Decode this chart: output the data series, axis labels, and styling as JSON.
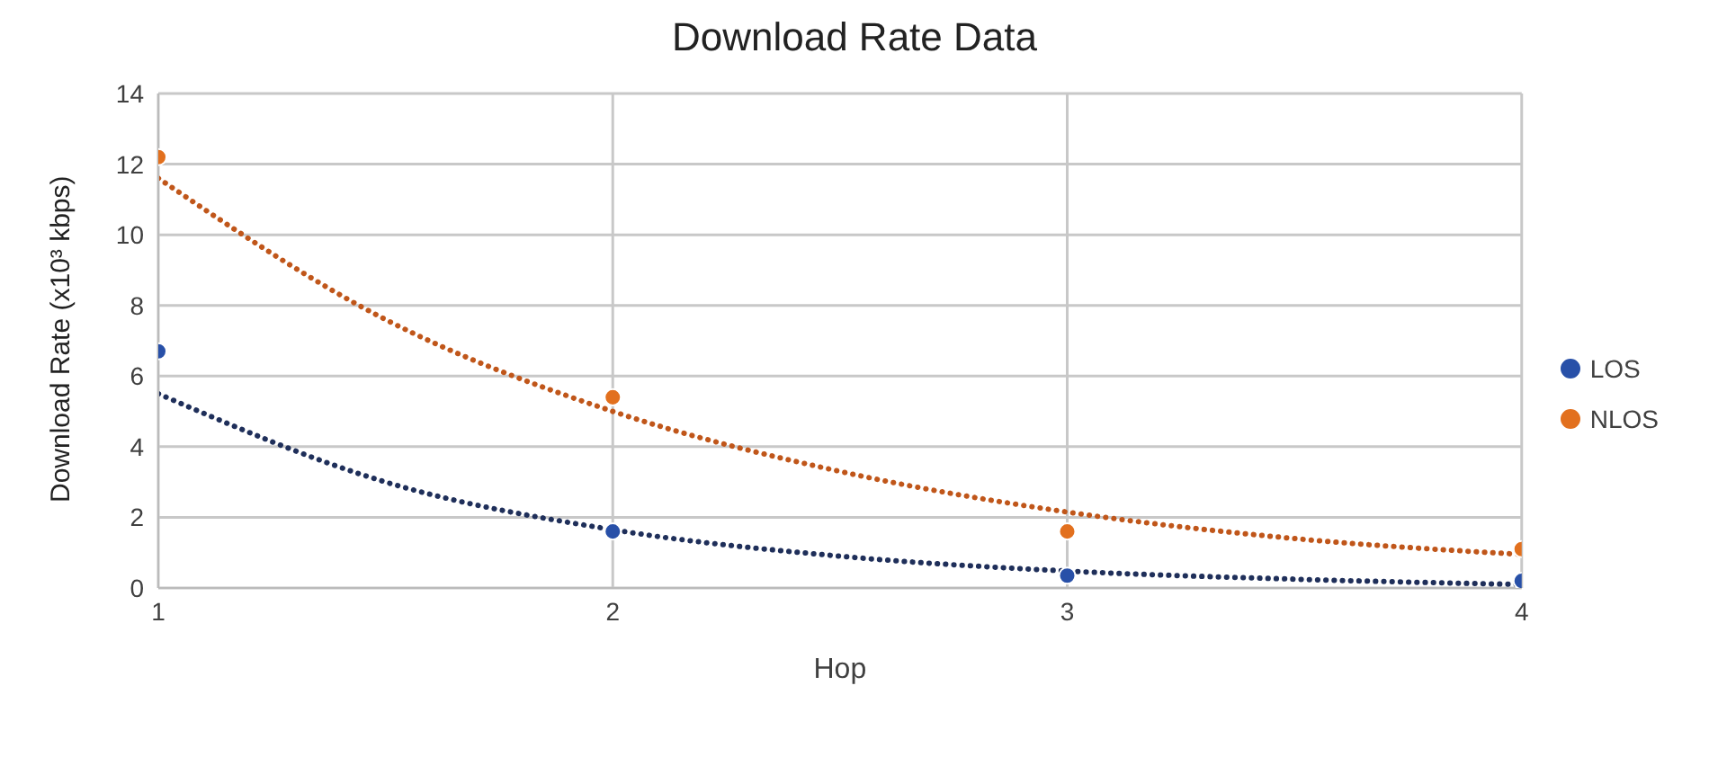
{
  "chart_data": {
    "type": "scatter",
    "title": "Download Rate Data",
    "xlabel": "Hop",
    "ylabel": "Download Rate (x10³ kbps)",
    "x": [
      1,
      2,
      3,
      4
    ],
    "series": [
      {
        "name": "LOS",
        "color": "#2850a8",
        "values": [
          6.7,
          1.6,
          0.35,
          0.2
        ]
      },
      {
        "name": "NLOS",
        "color": "#e2701e",
        "values": [
          12.2,
          5.4,
          1.6,
          1.1
        ]
      },
      {
        "type": "line",
        "color": "#1f2f5a",
        "line_style": "dotted",
        "marker": "none",
        "x": [
          1,
          1.5,
          2,
          2.5,
          3,
          3.5,
          4
        ],
        "values": [
          5.5,
          3.0,
          1.65,
          0.9,
          0.48,
          0.25,
          0.1
        ]
      },
      {
        "type": "line",
        "color": "#c0561a",
        "line_style": "dotted",
        "marker": "none",
        "x": [
          1,
          1.5,
          2,
          2.5,
          3,
          3.5,
          4
        ],
        "values": [
          11.6,
          7.6,
          5.0,
          3.3,
          2.15,
          1.4,
          0.95
        ]
      }
    ],
    "marker": "circle",
    "xlim": [
      1,
      4
    ],
    "xticks": [
      1,
      2,
      3,
      4
    ],
    "ylim": [
      0,
      14
    ],
    "yticks": [
      0,
      2,
      4,
      6,
      8,
      10,
      12,
      14
    ],
    "grid": true,
    "legend": "right"
  }
}
